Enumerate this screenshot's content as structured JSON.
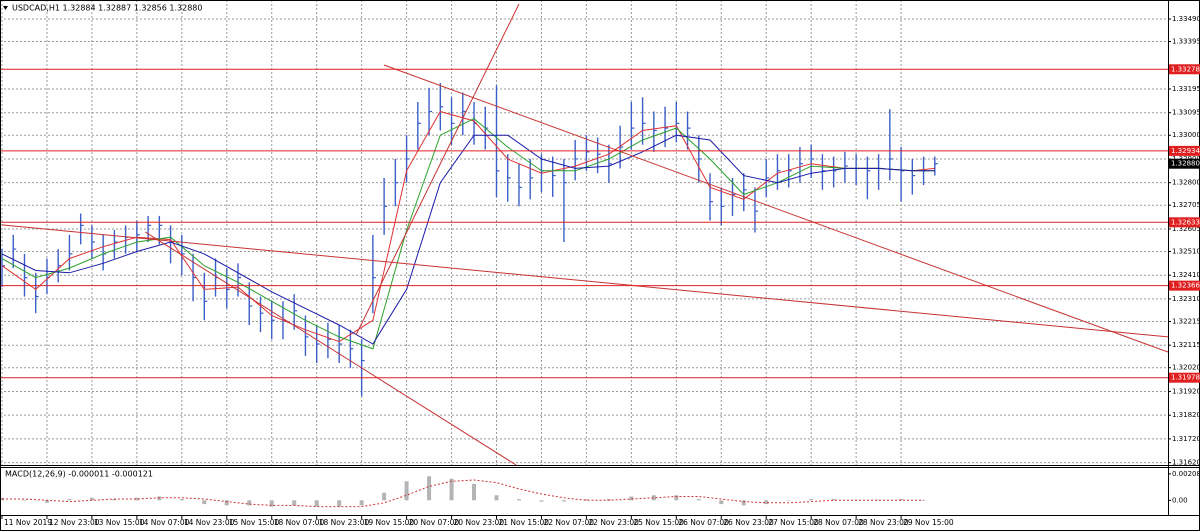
{
  "chart_data": [
    {
      "type": "ohlc",
      "title": "USDCAD,H1  1.32884 1.32887 1.32856 1.32880",
      "color": "#3b5fc8",
      "grid": true,
      "xlim": [
        0,
        415
      ],
      "ylim": [
        1.3161,
        1.3357
      ],
      "xticks": [
        {
          "value": 0,
          "label": "11 Nov 2019"
        },
        {
          "value": 16,
          "label": "12 Nov 23:00"
        },
        {
          "value": 32,
          "label": "13 Nov 15:00"
        },
        {
          "value": 48,
          "label": "14 Nov 07:00"
        },
        {
          "value": 64,
          "label": "14 Nov 23:00"
        },
        {
          "value": 80,
          "label": "15 Nov 15:00"
        },
        {
          "value": 96,
          "label": "18 Nov 07:00"
        },
        {
          "value": 112,
          "label": "18 Nov 23:00"
        },
        {
          "value": 128,
          "label": "19 Nov 15:00"
        },
        {
          "value": 144,
          "label": "20 Nov 07:00"
        },
        {
          "value": 160,
          "label": "20 Nov 23:00"
        },
        {
          "value": 176,
          "label": "21 Nov 15:00"
        },
        {
          "value": 192,
          "label": "22 Nov 07:00"
        },
        {
          "value": 208,
          "label": "22 Nov 23:00"
        },
        {
          "value": 224,
          "label": "25 Nov 15:00"
        },
        {
          "value": 240,
          "label": "26 Nov 07:00"
        },
        {
          "value": 256,
          "label": "26 Nov 23:00"
        },
        {
          "value": 272,
          "label": "27 Nov 15:00"
        },
        {
          "value": 288,
          "label": "28 Nov 07:00"
        },
        {
          "value": 304,
          "label": "28 Nov 23:00"
        },
        {
          "value": 320,
          "label": "29 Nov 15:00"
        }
      ],
      "yticks": [
        {
          "value": 1.3349,
          "label": "1.33490"
        },
        1.33395,
        1.33195,
        1.33095,
        {
          "value": 1.33,
          "label": "1.33000"
        },
        {
          "value": 1.329,
          "label": "1.32900"
        },
        {
          "value": 1.328,
          "label": "1.32800"
        },
        1.32705,
        1.32605,
        {
          "value": 1.3251,
          "label": "1.32510"
        },
        {
          "value": 1.3241,
          "label": "1.32410"
        },
        {
          "value": 1.3231,
          "label": "1.32310"
        },
        1.32215,
        1.32115,
        {
          "value": 1.3202,
          "label": "1.32020"
        },
        {
          "value": 1.3192,
          "label": "1.31920"
        },
        {
          "value": 1.3182,
          "label": "1.31820"
        },
        {
          "value": 1.3172,
          "label": "1.31720"
        },
        {
          "value": 1.3162,
          "label": "1.31620"
        }
      ],
      "x": [
        0,
        4,
        8,
        12,
        16,
        20,
        24,
        28,
        32,
        36,
        40,
        44,
        48,
        52,
        56,
        60,
        64,
        68,
        72,
        76,
        80,
        84,
        88,
        92,
        96,
        100,
        104,
        108,
        112,
        116,
        120,
        124,
        128,
        132,
        136,
        140,
        144,
        148,
        152,
        156,
        160,
        164,
        168,
        172,
        176,
        180,
        184,
        188,
        192,
        196,
        200,
        204,
        208,
        212,
        216,
        220,
        224,
        228,
        232,
        236,
        240,
        244,
        248,
        252,
        256,
        260,
        264,
        268,
        272,
        276,
        280,
        284,
        288,
        292,
        296,
        300,
        304,
        308,
        312,
        316,
        320,
        324,
        328,
        332
      ],
      "high": [
        1.3252,
        1.3258,
        1.325,
        1.3242,
        1.3248,
        1.3252,
        1.3258,
        1.3267,
        1.3262,
        1.3258,
        1.326,
        1.3262,
        1.3264,
        1.3266,
        1.3266,
        1.3262,
        1.3258,
        1.325,
        1.3242,
        1.3248,
        1.3244,
        1.3246,
        1.3238,
        1.3232,
        1.323,
        1.323,
        1.3233,
        1.3224,
        1.322,
        1.3221,
        1.322,
        1.3218,
        1.3214,
        1.3258,
        1.3282,
        1.329,
        1.33,
        1.3314,
        1.332,
        1.3322,
        1.3316,
        1.3318,
        1.3314,
        1.3312,
        1.3321,
        1.3292,
        1.3288,
        1.329,
        1.3292,
        1.3291,
        1.329,
        1.3298,
        1.33,
        1.3299,
        1.3296,
        1.3304,
        1.3314,
        1.3316,
        1.331,
        1.3312,
        1.3314,
        1.331,
        1.33,
        1.3284,
        1.3278,
        1.3282,
        1.3284,
        1.3278,
        1.329,
        1.3292,
        1.3292,
        1.3295,
        1.3296,
        1.3292,
        1.3291,
        1.3293,
        1.3292,
        1.3291,
        1.3292,
        1.3311,
        1.3295,
        1.329,
        1.3291,
        1.3291
      ],
      "low": [
        1.3236,
        1.3244,
        1.3232,
        1.3225,
        1.3233,
        1.3238,
        1.3243,
        1.3254,
        1.3248,
        1.3243,
        1.3248,
        1.325,
        1.3251,
        1.3255,
        1.3254,
        1.3246,
        1.3241,
        1.323,
        1.3222,
        1.3232,
        1.3227,
        1.3232,
        1.322,
        1.3217,
        1.3214,
        1.3214,
        1.3218,
        1.3207,
        1.3204,
        1.3206,
        1.3204,
        1.3202,
        1.319,
        1.3225,
        1.3258,
        1.327,
        1.328,
        1.3294,
        1.33,
        1.3302,
        1.3296,
        1.33,
        1.3296,
        1.3294,
        1.3274,
        1.3272,
        1.327,
        1.3273,
        1.3276,
        1.3274,
        1.3255,
        1.3281,
        1.3285,
        1.3284,
        1.328,
        1.3286,
        1.3294,
        1.3296,
        1.3293,
        1.3295,
        1.3297,
        1.3294,
        1.328,
        1.3264,
        1.3262,
        1.3266,
        1.3268,
        1.3259,
        1.3274,
        1.3277,
        1.3278,
        1.328,
        1.3282,
        1.3277,
        1.3278,
        1.328,
        1.3279,
        1.3273,
        1.3277,
        1.3281,
        1.3272,
        1.3275,
        1.3279,
        1.3283
      ],
      "close": [
        1.3245,
        1.3252,
        1.324,
        1.3232,
        1.324,
        1.3245,
        1.325,
        1.3262,
        1.3255,
        1.325,
        1.3255,
        1.3257,
        1.3258,
        1.3262,
        1.3262,
        1.3255,
        1.325,
        1.324,
        1.323,
        1.324,
        1.3235,
        1.324,
        1.3228,
        1.3225,
        1.3222,
        1.3222,
        1.3226,
        1.3215,
        1.3212,
        1.3214,
        1.3212,
        1.321,
        1.3205,
        1.324,
        1.327,
        1.328,
        1.329,
        1.3305,
        1.331,
        1.3312,
        1.3305,
        1.331,
        1.3305,
        1.3303,
        1.3285,
        1.3282,
        1.3278,
        1.3282,
        1.3285,
        1.3283,
        1.328,
        1.329,
        1.3293,
        1.3292,
        1.3288,
        1.3295,
        1.3303,
        1.3305,
        1.3302,
        1.3303,
        1.3305,
        1.3303,
        1.329,
        1.3272,
        1.327,
        1.3275,
        1.3277,
        1.3268,
        1.3282,
        1.3285,
        1.3285,
        1.3288,
        1.329,
        1.3285,
        1.3285,
        1.3287,
        1.3286,
        1.3285,
        1.3286,
        1.329,
        1.3285,
        1.3283,
        1.3285,
        1.3288
      ],
      "overlay_x": [
        0,
        12,
        24,
        36,
        48,
        60,
        72,
        84,
        96,
        108,
        120,
        132,
        144,
        156,
        168,
        180,
        192,
        204,
        216,
        228,
        240,
        252,
        264,
        276,
        288,
        300,
        312,
        324,
        332
      ],
      "overlays": [
        {
          "color": "#e03030",
          "values": [
            1.3245,
            1.3235,
            1.3248,
            1.3253,
            1.3257,
            1.3256,
            1.3235,
            1.3236,
            1.3224,
            1.3218,
            1.3213,
            1.3222,
            1.3285,
            1.331,
            1.3306,
            1.329,
            1.3284,
            1.3287,
            1.3292,
            1.3302,
            1.3304,
            1.3278,
            1.3273,
            1.3284,
            1.3288,
            1.3286,
            1.3286,
            1.3285,
            1.3286
          ]
        },
        {
          "color": "#2aa02a",
          "values": [
            1.3248,
            1.324,
            1.3244,
            1.325,
            1.3255,
            1.3257,
            1.3245,
            1.3238,
            1.323,
            1.3222,
            1.3215,
            1.321,
            1.326,
            1.33,
            1.3307,
            1.3295,
            1.3285,
            1.3285,
            1.329,
            1.3298,
            1.3303,
            1.329,
            1.3275,
            1.328,
            1.3287,
            1.3286,
            1.3286,
            1.3285,
            1.3285
          ]
        },
        {
          "color": "#1a1aa8",
          "values": [
            1.325,
            1.3243,
            1.3242,
            1.3246,
            1.3251,
            1.3255,
            1.325,
            1.3242,
            1.3234,
            1.3227,
            1.322,
            1.3212,
            1.3235,
            1.328,
            1.33,
            1.33,
            1.329,
            1.3286,
            1.3287,
            1.3293,
            1.33,
            1.3298,
            1.3283,
            1.328,
            1.3284,
            1.3286,
            1.3286,
            1.3285,
            1.3285
          ]
        }
      ],
      "trend_color": "#c83232",
      "trendlines": [
        {
          "x": [
            0,
            415
          ],
          "y": [
            1.32622,
            1.3215
          ]
        },
        {
          "x": [
            51,
            183
          ],
          "y": [
            1.32592,
            1.3161
          ]
        },
        {
          "x": [
            126,
            184
          ],
          "y": [
            1.32158,
            1.33553
          ]
        },
        {
          "x": [
            136,
            415
          ],
          "y": [
            1.33296,
            1.32086
          ]
        }
      ],
      "level_color": "#e02020",
      "levels": [
        1.33278,
        1.32934,
        1.32633,
        1.32366,
        1.31978
      ],
      "current_price": {
        "value": 1.3288,
        "label": "1.32880"
      }
    },
    {
      "type": "macd",
      "title": "MACD(12,26,9) -0.000011 -0.000121",
      "xlim": [
        0,
        415
      ],
      "ylim": [
        -0.00116,
        0.00263
      ],
      "yticks": [
        0.002085,
        {
          "value": 0,
          "label": "0.00"
        }
      ],
      "histogram_color": "#b4b4b4",
      "signal_color": "#d03030",
      "x": [
        0,
        8,
        16,
        24,
        32,
        40,
        48,
        56,
        64,
        72,
        80,
        88,
        96,
        104,
        112,
        120,
        128,
        136,
        144,
        152,
        160,
        168,
        176,
        184,
        192,
        200,
        208,
        216,
        224,
        232,
        240,
        248,
        256,
        264,
        272,
        280,
        288,
        296,
        304,
        312,
        320,
        328
      ],
      "histogram": [
        0.0002,
        0,
        -0.0002,
        0.0001,
        0.0002,
        0.0001,
        0.0002,
        0.0003,
        0.0001,
        -0.0003,
        -0.0004,
        -0.0004,
        -0.0005,
        -0.0004,
        -0.0005,
        -0.0005,
        -0.0004,
        0.0006,
        0.0015,
        0.0019,
        0.0017,
        0.0013,
        0.0004,
        0.0001,
        -0.0001,
        -0.0001,
        0.0001,
        0.0001,
        0.0003,
        0.0004,
        0.0004,
        0.0001,
        -0.0003,
        -0.0004,
        -0.0003,
        0,
        0.0001,
        0.0001,
        0,
        0,
        0.0001,
        0
      ],
      "signal": [
        0.0001,
        0.0001,
        0,
        -0.0001,
        0,
        0.0001,
        0.0001,
        0.0002,
        0.0002,
        0.0001,
        -0.0001,
        -0.0003,
        -0.0004,
        -0.0004,
        -0.0005,
        -0.0005,
        -0.0005,
        -0.0002,
        0.0004,
        0.0011,
        0.0015,
        0.0016,
        0.0014,
        0.0009,
        0.0005,
        0.0002,
        0,
        0,
        0.0001,
        0.0002,
        0.0003,
        0.0003,
        0.0001,
        -0.0001,
        -0.0002,
        -0.0002,
        -0.0001,
        0,
        0,
        0,
        0,
        0
      ]
    }
  ]
}
